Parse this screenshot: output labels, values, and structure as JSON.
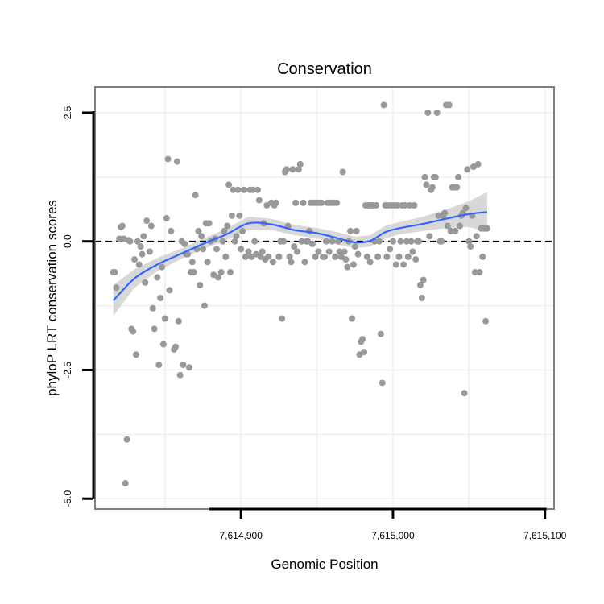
{
  "chart_data": {
    "type": "scatter",
    "title": "Conservation",
    "xlabel": "Genomic Position",
    "ylabel": "phyloP LRT conservation scores",
    "xlim": [
      7614804,
      7615106
    ],
    "ylim": [
      -5.2,
      3.0
    ],
    "x_ticks": [
      7614900,
      7615000,
      7615100
    ],
    "x_tick_labels": [
      "7,614,900",
      "7,615,000",
      "7,615,100"
    ],
    "y_ticks": [
      -5.0,
      -2.5,
      0.0,
      2.5
    ],
    "y_tick_labels": [
      "-5.0",
      "-2.5",
      "0.0",
      "2.5"
    ],
    "reference_line": {
      "y": 0,
      "style": "dashed"
    },
    "colors": {
      "points": "#999999",
      "smooth": "#3366ff",
      "ribbon": "#c8c8c8",
      "grid": "#f0f0f0",
      "panel_border": "#7f7f7f",
      "axis": "#000000"
    },
    "series": [
      {
        "name": "phyloP scores",
        "points": [
          [
            7614816,
            -0.6
          ],
          [
            7614817,
            -0.6
          ],
          [
            7614818,
            -0.9
          ],
          [
            7614820,
            0.05
          ],
          [
            7614821,
            0.28
          ],
          [
            7614822,
            0.3
          ],
          [
            7614823,
            0.05
          ],
          [
            7614824,
            -4.7
          ],
          [
            7614825,
            -3.85
          ],
          [
            7614826,
            0.02
          ],
          [
            7614827,
            0.0
          ],
          [
            7614828,
            -1.7
          ],
          [
            7614829,
            -1.75
          ],
          [
            7614830,
            -0.35
          ],
          [
            7614831,
            -2.2
          ],
          [
            7614832,
            0.0
          ],
          [
            7614833,
            -0.45
          ],
          [
            7614834,
            -0.1
          ],
          [
            7614835,
            -0.25
          ],
          [
            7614836,
            0.1
          ],
          [
            7614837,
            -0.8
          ],
          [
            7614838,
            0.4
          ],
          [
            7614840,
            -0.2
          ],
          [
            7614841,
            0.3
          ],
          [
            7614842,
            -1.3
          ],
          [
            7614843,
            -1.7
          ],
          [
            7614845,
            -0.7
          ],
          [
            7614846,
            -2.4
          ],
          [
            7614847,
            -1.1
          ],
          [
            7614848,
            -0.5
          ],
          [
            7614849,
            -2.0
          ],
          [
            7614850,
            -1.5
          ],
          [
            7614851,
            0.45
          ],
          [
            7614852,
            1.6
          ],
          [
            7614853,
            -0.95
          ],
          [
            7614854,
            0.2
          ],
          [
            7614856,
            -2.1
          ],
          [
            7614857,
            -2.05
          ],
          [
            7614858,
            1.55
          ],
          [
            7614859,
            -1.55
          ],
          [
            7614860,
            -2.6
          ],
          [
            7614861,
            0.0
          ],
          [
            7614862,
            -2.4
          ],
          [
            7614863,
            -0.05
          ],
          [
            7614864,
            -0.25
          ],
          [
            7614865,
            -0.25
          ],
          [
            7614866,
            -2.45
          ],
          [
            7614867,
            -0.6
          ],
          [
            7614868,
            -0.4
          ],
          [
            7614869,
            -0.6
          ],
          [
            7614870,
            0.9
          ],
          [
            7614871,
            -0.15
          ],
          [
            7614872,
            0.2
          ],
          [
            7614873,
            -0.85
          ],
          [
            7614874,
            0.1
          ],
          [
            7614875,
            -0.15
          ],
          [
            7614876,
            -1.25
          ],
          [
            7614877,
            0.35
          ],
          [
            7614878,
            -0.4
          ],
          [
            7614879,
            0.35
          ],
          [
            7614880,
            0.0
          ],
          [
            7614882,
            -0.65
          ],
          [
            7614883,
            0.05
          ],
          [
            7614884,
            -0.15
          ],
          [
            7614885,
            -0.7
          ],
          [
            7614887,
            -0.6
          ],
          [
            7614888,
            0.0
          ],
          [
            7614889,
            0.2
          ],
          [
            7614890,
            -0.3
          ],
          [
            7614891,
            0.3
          ],
          [
            7614892,
            1.1
          ],
          [
            7614893,
            -0.6
          ],
          [
            7614894,
            0.5
          ],
          [
            7614895,
            1.0
          ],
          [
            7614896,
            0.0
          ],
          [
            7614897,
            0.1
          ],
          [
            7614898,
            1.0
          ],
          [
            7614899,
            0.5
          ],
          [
            7614900,
            -0.15
          ],
          [
            7614901,
            0.2
          ],
          [
            7614902,
            1.0
          ],
          [
            7614903,
            -0.3
          ],
          [
            7614905,
            -0.2
          ],
          [
            7614906,
            1.0
          ],
          [
            7614907,
            -0.3
          ],
          [
            7614908,
            1.0
          ],
          [
            7614909,
            0.0
          ],
          [
            7614910,
            -0.25
          ],
          [
            7614911,
            1.0
          ],
          [
            7614912,
            0.8
          ],
          [
            7614913,
            -0.3
          ],
          [
            7614914,
            -0.2
          ],
          [
            7614915,
            0.35
          ],
          [
            7614916,
            -0.35
          ],
          [
            7614917,
            0.7
          ],
          [
            7614918,
            -0.3
          ],
          [
            7614920,
            0.75
          ],
          [
            7614921,
            -0.4
          ],
          [
            7614922,
            0.7
          ],
          [
            7614923,
            0.75
          ],
          [
            7614925,
            -0.3
          ],
          [
            7614926,
            0.0
          ],
          [
            7614927,
            -1.5
          ],
          [
            7614928,
            0.0
          ],
          [
            7614929,
            1.35
          ],
          [
            7614930,
            1.4
          ],
          [
            7614931,
            0.3
          ],
          [
            7614932,
            -0.3
          ],
          [
            7614933,
            -0.4
          ],
          [
            7614934,
            1.4
          ],
          [
            7614935,
            -0.1
          ],
          [
            7614936,
            0.75
          ],
          [
            7614937,
            -0.2
          ],
          [
            7614938,
            1.4
          ],
          [
            7614939,
            1.5
          ],
          [
            7614940,
            0.0
          ],
          [
            7614941,
            0.75
          ],
          [
            7614942,
            -0.4
          ],
          [
            7614943,
            0.0
          ],
          [
            7614944,
            0.0
          ],
          [
            7614945,
            0.2
          ],
          [
            7614946,
            0.75
          ],
          [
            7614947,
            -0.05
          ],
          [
            7614948,
            0.75
          ],
          [
            7614949,
            -0.3
          ],
          [
            7614950,
            0.75
          ],
          [
            7614951,
            -0.2
          ],
          [
            7614952,
            0.75
          ],
          [
            7614953,
            0.75
          ],
          [
            7614954,
            -0.3
          ],
          [
            7614955,
            -0.3
          ],
          [
            7614956,
            0.0
          ],
          [
            7614957,
            0.75
          ],
          [
            7614958,
            -0.2
          ],
          [
            7614959,
            0.75
          ],
          [
            7614960,
            0.0
          ],
          [
            7614961,
            0.75
          ],
          [
            7614962,
            -0.3
          ],
          [
            7614963,
            0.75
          ],
          [
            7614964,
            0.0
          ],
          [
            7614965,
            -0.2
          ],
          [
            7614966,
            -0.3
          ],
          [
            7614967,
            1.35
          ],
          [
            7614968,
            -0.2
          ],
          [
            7614969,
            -0.35
          ],
          [
            7614970,
            -0.5
          ],
          [
            7614971,
            0.0
          ],
          [
            7614972,
            0.2
          ],
          [
            7614973,
            -1.5
          ],
          [
            7614974,
            -0.45
          ],
          [
            7614975,
            -0.1
          ],
          [
            7614976,
            0.2
          ],
          [
            7614977,
            -0.25
          ],
          [
            7614978,
            -2.2
          ],
          [
            7614979,
            -1.95
          ],
          [
            7614980,
            -1.9
          ],
          [
            7614981,
            -2.15
          ],
          [
            7614982,
            0.7
          ],
          [
            7614983,
            -0.3
          ],
          [
            7614984,
            0.7
          ],
          [
            7614985,
            -0.4
          ],
          [
            7614986,
            0.7
          ],
          [
            7614987,
            0.7
          ],
          [
            7614988,
            0.0
          ],
          [
            7614989,
            0.7
          ],
          [
            7614990,
            -0.3
          ],
          [
            7614991,
            0.0
          ],
          [
            7614992,
            -1.8
          ],
          [
            7614993,
            -2.75
          ],
          [
            7614994,
            2.65
          ],
          [
            7614995,
            0.7
          ],
          [
            7614996,
            -0.3
          ],
          [
            7614997,
            0.7
          ],
          [
            7614998,
            -0.15
          ],
          [
            7614999,
            0.7
          ],
          [
            7615000,
            0.0
          ],
          [
            7615001,
            0.7
          ],
          [
            7615002,
            -0.45
          ],
          [
            7615003,
            0.7
          ],
          [
            7615004,
            -0.3
          ],
          [
            7615005,
            0.0
          ],
          [
            7615006,
            0.7
          ],
          [
            7615007,
            -0.45
          ],
          [
            7615008,
            0.7
          ],
          [
            7615009,
            0.0
          ],
          [
            7615010,
            -0.3
          ],
          [
            7615011,
            0.7
          ],
          [
            7615012,
            0.0
          ],
          [
            7615013,
            -0.2
          ],
          [
            7615014,
            0.7
          ],
          [
            7615015,
            -0.35
          ],
          [
            7615016,
            0.0
          ],
          [
            7615017,
            0.0
          ],
          [
            7615018,
            -0.85
          ],
          [
            7615019,
            -1.1
          ],
          [
            7615020,
            -0.75
          ],
          [
            7615021,
            1.25
          ],
          [
            7615022,
            1.1
          ],
          [
            7615023,
            2.5
          ],
          [
            7615024,
            0.1
          ],
          [
            7615025,
            1.0
          ],
          [
            7615026,
            1.05
          ],
          [
            7615027,
            1.25
          ],
          [
            7615028,
            1.25
          ],
          [
            7615029,
            2.5
          ],
          [
            7615030,
            0.5
          ],
          [
            7615031,
            0.0
          ],
          [
            7615032,
            0.0
          ],
          [
            7615033,
            0.5
          ],
          [
            7615034,
            0.55
          ],
          [
            7615035,
            2.65
          ],
          [
            7615036,
            0.3
          ],
          [
            7615037,
            2.65
          ],
          [
            7615038,
            0.2
          ],
          [
            7615039,
            1.05
          ],
          [
            7615040,
            1.05
          ],
          [
            7615041,
            0.2
          ],
          [
            7615042,
            1.05
          ],
          [
            7615043,
            1.25
          ],
          [
            7615044,
            0.3
          ],
          [
            7615045,
            0.5
          ],
          [
            7615046,
            0.55
          ],
          [
            7615047,
            -2.95
          ],
          [
            7615048,
            0.65
          ],
          [
            7615049,
            1.4
          ],
          [
            7615050,
            0.0
          ],
          [
            7615051,
            -0.1
          ],
          [
            7615052,
            0.5
          ],
          [
            7615053,
            1.45
          ],
          [
            7615054,
            -0.6
          ],
          [
            7615055,
            0.1
          ],
          [
            7615056,
            1.5
          ],
          [
            7615057,
            -0.6
          ],
          [
            7615058,
            0.25
          ],
          [
            7615059,
            -0.3
          ],
          [
            7615060,
            0.25
          ],
          [
            7615061,
            -1.55
          ],
          [
            7615062,
            0.25
          ]
        ]
      }
    ],
    "smooth": {
      "method": "loess",
      "x": [
        7614816,
        7614830,
        7614845,
        7614860,
        7614875,
        7614890,
        7614905,
        7614920,
        7614935,
        7614950,
        7614965,
        7614975,
        7614985,
        7614995,
        7615005,
        7615020,
        7615035,
        7615050,
        7615062
      ],
      "y": [
        -1.15,
        -0.72,
        -0.45,
        -0.25,
        -0.05,
        0.13,
        0.35,
        0.33,
        0.22,
        0.16,
        0.05,
        -0.02,
        0.01,
        0.18,
        0.26,
        0.34,
        0.44,
        0.53,
        0.57
      ],
      "lower": [
        -1.45,
        -0.9,
        -0.58,
        -0.35,
        -0.15,
        0.02,
        0.22,
        0.22,
        0.12,
        0.06,
        -0.07,
        -0.13,
        -0.1,
        0.06,
        0.14,
        0.2,
        0.26,
        0.28,
        0.18
      ],
      "upper": [
        -0.85,
        -0.54,
        -0.32,
        -0.15,
        0.05,
        0.24,
        0.48,
        0.44,
        0.32,
        0.26,
        0.17,
        0.09,
        0.12,
        0.3,
        0.38,
        0.48,
        0.62,
        0.78,
        0.96
      ]
    }
  }
}
